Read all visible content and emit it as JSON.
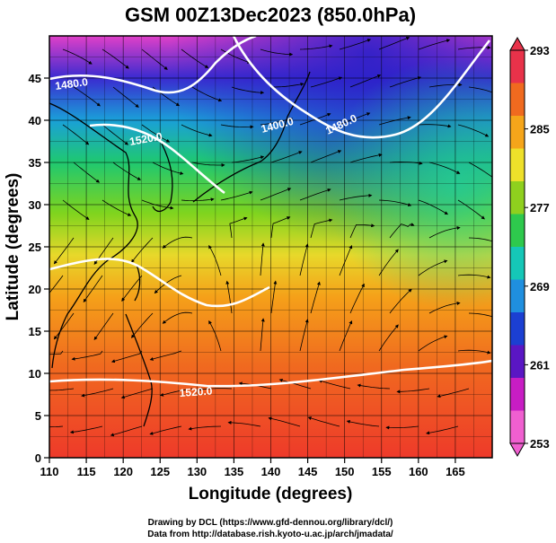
{
  "title": "GSM 00Z13Dec2023 (850.0hPa)",
  "map": {
    "xlabel": "Longitude (degrees)",
    "ylabel": "Latitude  (degrees)",
    "x_ticks": [
      "110",
      "115",
      "120",
      "125",
      "130",
      "135",
      "140",
      "145",
      "150",
      "155",
      "160",
      "165"
    ],
    "y_ticks": [
      "0",
      "5",
      "10",
      "15",
      "20",
      "25",
      "30",
      "35",
      "40",
      "45"
    ],
    "contour_labels": [
      "1480.0",
      "1520.0",
      "1400.0",
      "1480.0",
      "1520.0"
    ]
  },
  "colorbar": {
    "labels": [
      "293",
      "285",
      "277",
      "269",
      "261",
      "253"
    ],
    "colors": [
      "#e8324a",
      "#f06a1f",
      "#f5a51a",
      "#eee02a",
      "#8fd01e",
      "#2ec94d",
      "#15c7b7",
      "#1f8fdf",
      "#1b3fd2",
      "#5a16c4",
      "#c81dc4",
      "#f05fd0"
    ]
  },
  "footer": {
    "line1": "Drawing by DCL (https://www.gfd-dennou.org/library/dcl/)",
    "line2": "Data from http://database.rish.kyoto-u.ac.jp/arch/jmadata/"
  }
}
